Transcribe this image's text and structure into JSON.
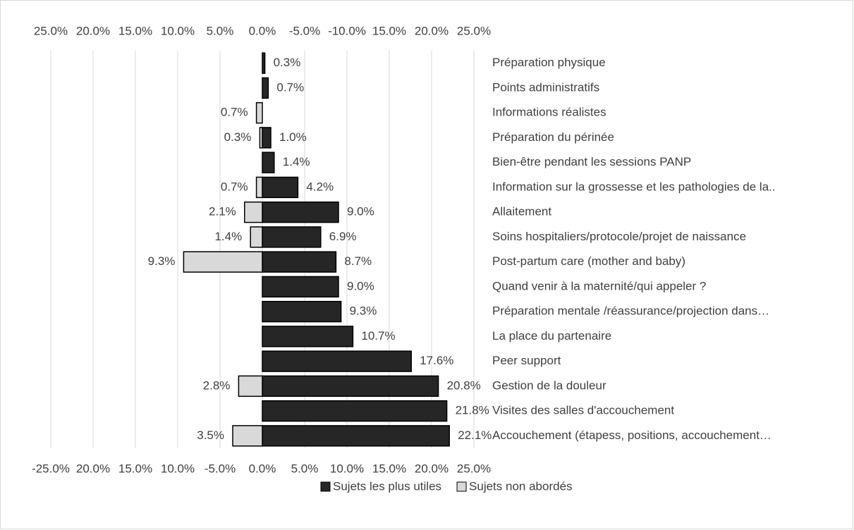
{
  "chart_data": {
    "type": "bar",
    "orientation": "horizontal",
    "categories": [
      "Préparation physique",
      "Points administratifs",
      "Informations réalistes",
      "Préparation du périnée",
      "Bien-être pendant les sessions PANP",
      "Information sur la grossesse et les pathologies de la..",
      "Allaitement",
      "Soins hospitaliers/protocole/projet de naissance",
      "Post-partum care (mother and baby)",
      "Quand venir à la maternité/qui appeler ?",
      "Préparation mentale /réassurance/projection dans…",
      "La place du partenaire",
      "Peer support",
      "Gestion de la douleur",
      "Visites des salles d'accouchement",
      "Accouchement (étapess, positions, accouchement…"
    ],
    "series": [
      {
        "name": "Sujets les plus utiles",
        "color": "#262626",
        "axis": "x",
        "values": [
          0.3,
          0.7,
          null,
          1.0,
          1.4,
          4.2,
          9.0,
          6.9,
          8.7,
          9.0,
          9.3,
          10.7,
          17.6,
          20.8,
          21.8,
          22.1
        ],
        "value_labels": [
          "0.3%",
          "0.7%",
          null,
          "1.0%",
          "1.4%",
          "4.2%",
          "9.0%",
          "6.9%",
          "8.7%",
          "9.0%",
          "9.3%",
          "10.7%",
          "17.6%",
          "20.8%",
          "21.8%",
          "22.1%"
        ]
      },
      {
        "name": "Sujets non abordés",
        "color": "#d9d9d9",
        "axis": "x2",
        "values": [
          null,
          null,
          0.7,
          0.3,
          null,
          0.7,
          2.1,
          1.4,
          9.3,
          null,
          null,
          null,
          null,
          2.8,
          null,
          3.5
        ],
        "value_labels": [
          null,
          null,
          "0.7%",
          "0.3%",
          null,
          "0.7%",
          "2.1%",
          "1.4%",
          "9.3%",
          null,
          null,
          null,
          null,
          "2.8%",
          null,
          "3.5%"
        ]
      }
    ],
    "xlim": [
      -25,
      25
    ],
    "xticks": [
      {
        "value": -25,
        "label": "-25.0%"
      },
      {
        "value": -20,
        "label": "20.0%"
      },
      {
        "value": -15,
        "label": "15.0%"
      },
      {
        "value": -10,
        "label": "10.0%"
      },
      {
        "value": -5,
        "label": "-5.0%"
      },
      {
        "value": 0,
        "label": "0.0%"
      },
      {
        "value": 5,
        "label": "5.0%"
      },
      {
        "value": 10,
        "label": "10.0%"
      },
      {
        "value": 15,
        "label": "15.0%"
      },
      {
        "value": 20,
        "label": "20.0%"
      },
      {
        "value": 25,
        "label": "25.0%"
      }
    ],
    "x2lim": [
      25,
      -25
    ],
    "x2ticks": [
      {
        "value": 25,
        "label": "25.0%"
      },
      {
        "value": 20,
        "label": "20.0%"
      },
      {
        "value": 15,
        "label": "15.0%"
      },
      {
        "value": 10,
        "label": "10.0%"
      },
      {
        "value": 5,
        "label": "5.0%"
      },
      {
        "value": 0,
        "label": "0.0%"
      },
      {
        "value": -5,
        "label": "-5.0%"
      },
      {
        "value": -10,
        "label": "-10.0%"
      },
      {
        "value": -15,
        "label": "15.0%"
      },
      {
        "value": -20,
        "label": "20.0%"
      },
      {
        "value": -25,
        "label": "25.0%"
      }
    ],
    "grid": true,
    "legend": "bottom"
  }
}
